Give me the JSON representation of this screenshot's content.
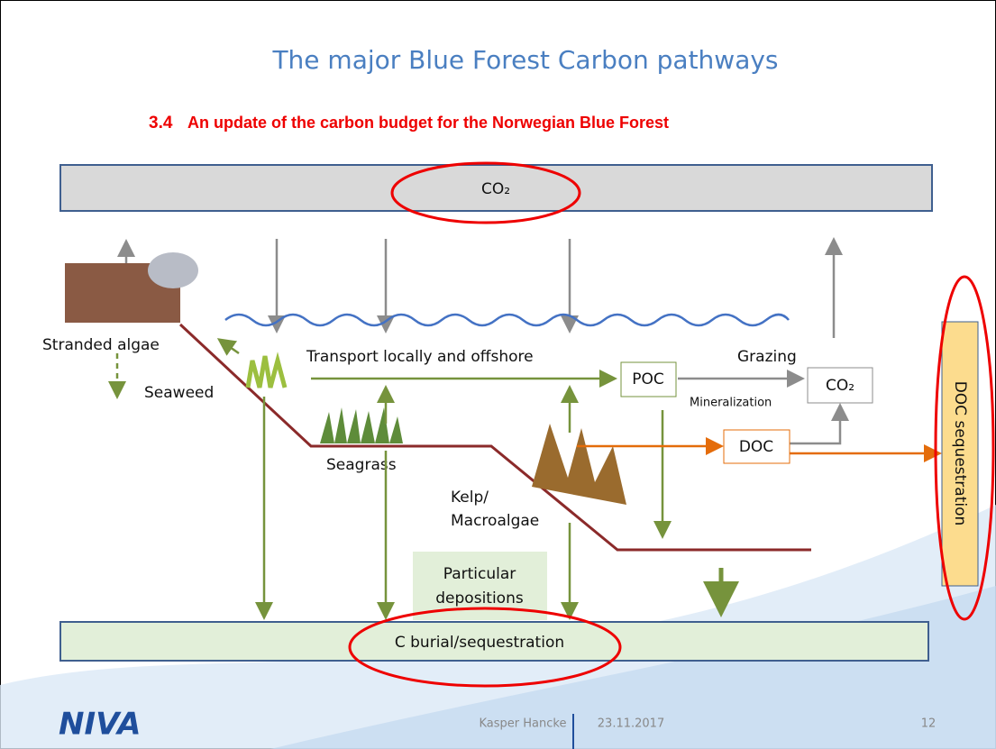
{
  "header": {
    "title": "The major Blue Forest Carbon pathways",
    "section": "3.4",
    "subtitle": "An update of the carbon budget for the Norwegian Blue Forest"
  },
  "atmosphere": {
    "label": "CO₂"
  },
  "labels": {
    "stranded_algae": "Stranded algae",
    "seaweed": "Seaweed",
    "transport": "Transport locally and offshore",
    "grazing": "Grazing",
    "mineralization": "Mineralization",
    "seagrass": "Seagrass",
    "kelp": [
      "Kelp/",
      "Macroalgae"
    ],
    "particular": [
      "Particular",
      "depositions"
    ]
  },
  "boxes": {
    "poc": "POC",
    "co2": "CO₂",
    "doc": "DOC",
    "doc_sequestration": "DOC sequestration",
    "burial": "C burial/sequestration"
  },
  "footer": {
    "logo": "NIVA",
    "author": "Kasper Hancke",
    "date": "23.11.2017",
    "page": "12"
  }
}
